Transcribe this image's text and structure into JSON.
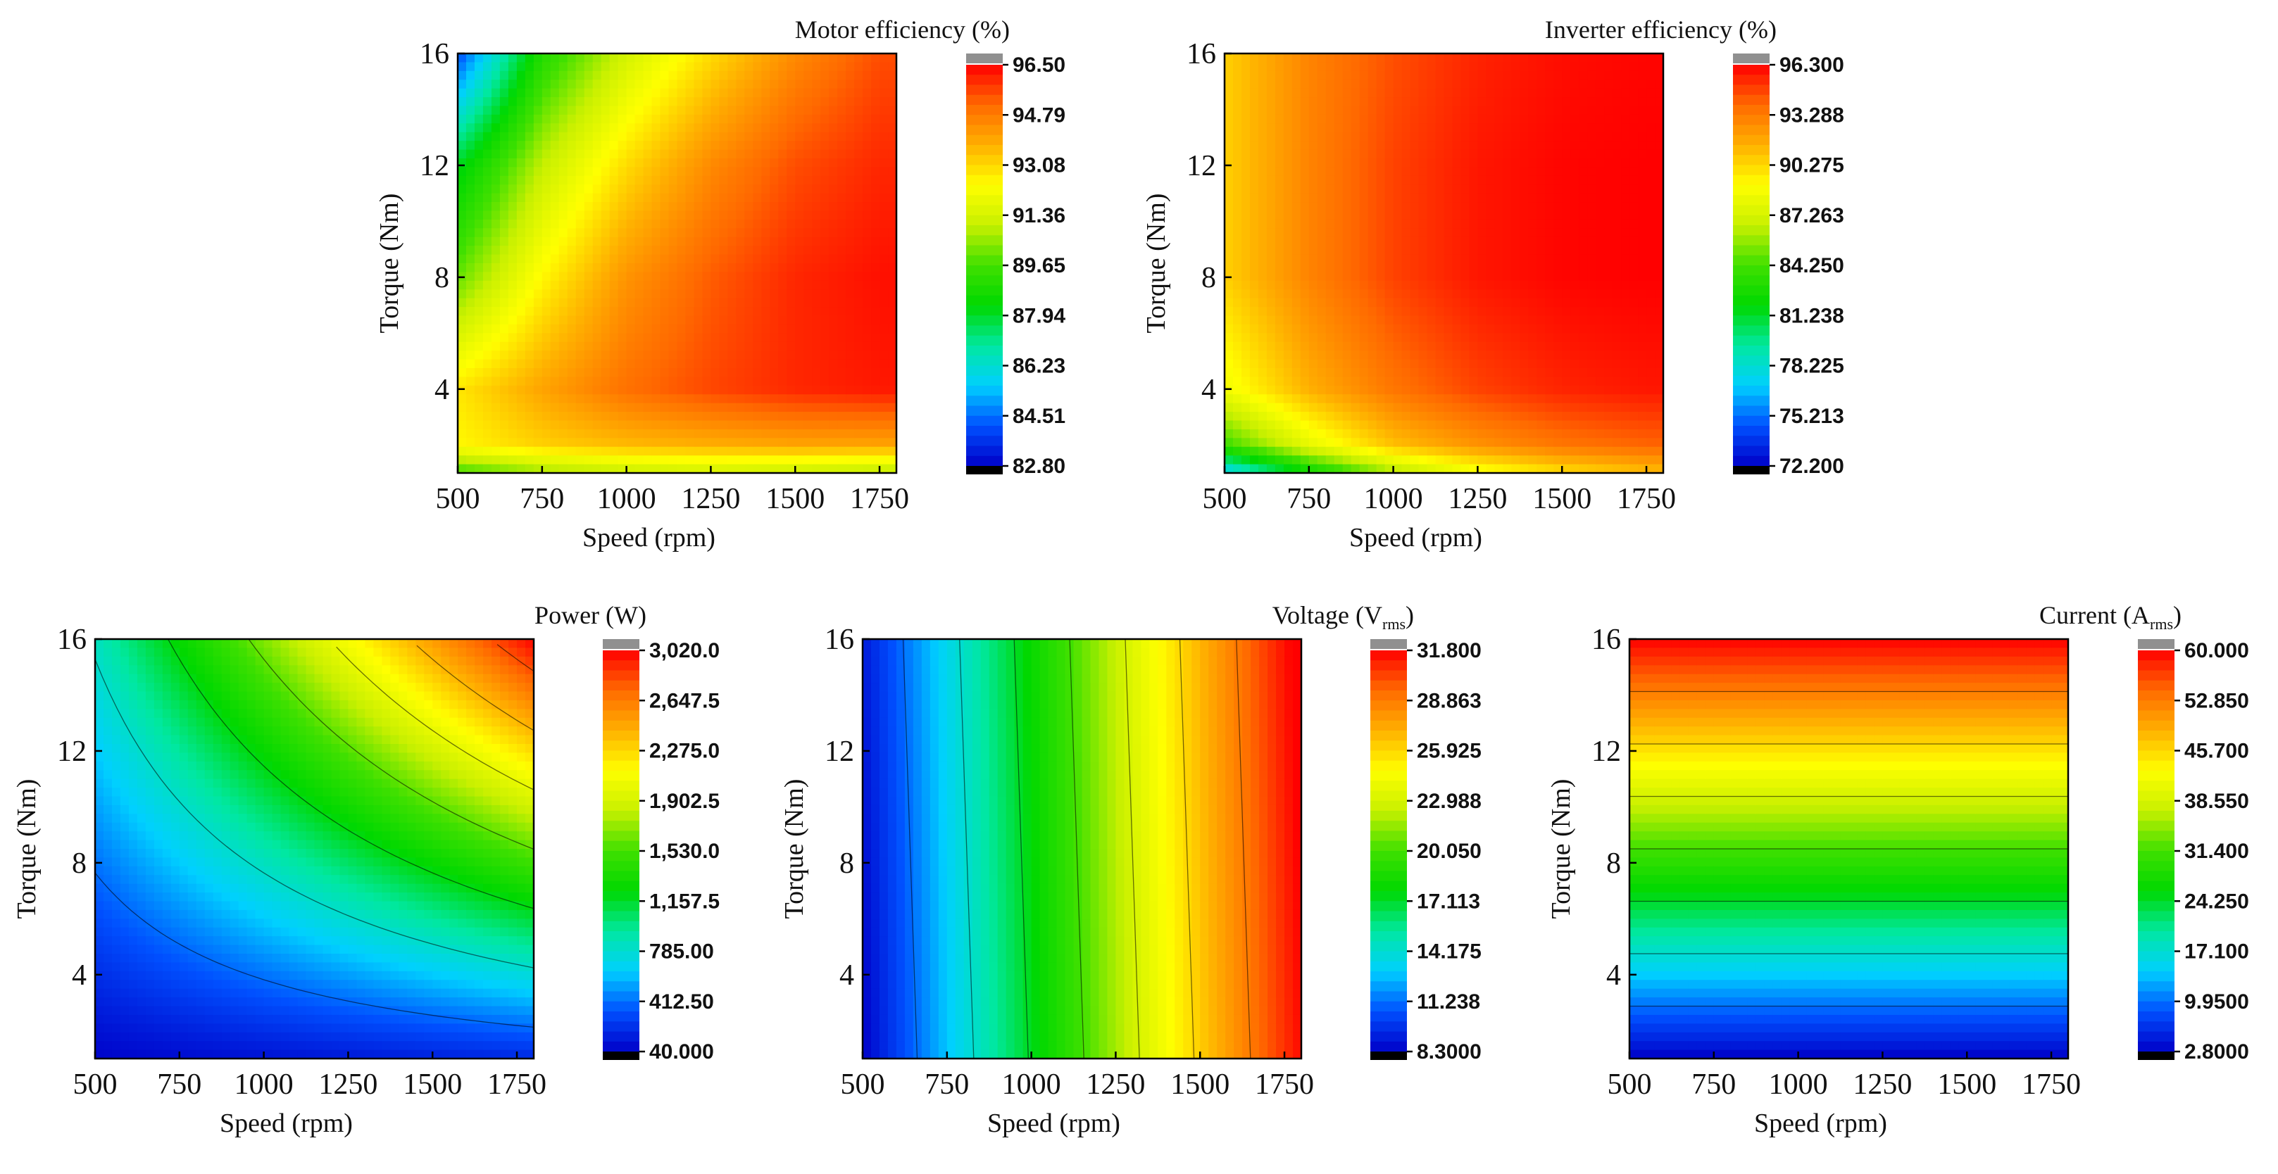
{
  "chart_data": [
    {
      "id": "motor",
      "type": "heatmap",
      "title": "Motor efficiency (%)",
      "xlabel": "Speed (rpm)",
      "ylabel": "Torque (Nm)",
      "xticks": [
        500,
        750,
        1000,
        1250,
        1500,
        1750
      ],
      "yticks": [
        4,
        8,
        12,
        16
      ],
      "xlim": [
        500,
        1800
      ],
      "ylim": [
        1,
        16
      ],
      "colorbar_ticks": [
        "96.50",
        "94.79",
        "93.08",
        "91.36",
        "89.65",
        "87.94",
        "86.23",
        "84.51",
        "82.80"
      ],
      "zlim": [
        82.8,
        96.5
      ],
      "x": [
        500,
        750,
        1000,
        1250,
        1500,
        1750
      ],
      "y": [
        1,
        2,
        4,
        8,
        12,
        16
      ],
      "z": [
        [
          89.5,
          90.5,
          91.0,
          91.2,
          91.0,
          90.8
        ],
        [
          92.5,
          93.2,
          93.6,
          93.8,
          94.0,
          94.0
        ],
        [
          92.8,
          94.0,
          95.0,
          95.6,
          96.0,
          96.2
        ],
        [
          90.0,
          92.5,
          94.3,
          95.3,
          96.0,
          96.3
        ],
        [
          88.0,
          91.0,
          93.0,
          94.5,
          95.5,
          96.0
        ],
        [
          84.0,
          89.0,
          91.3,
          93.0,
          94.5,
          95.5
        ]
      ]
    },
    {
      "id": "inverter",
      "type": "heatmap",
      "title": "Inverter efficiency (%)",
      "xlabel": "Speed (rpm)",
      "ylabel": "Torque (Nm)",
      "xticks": [
        500,
        750,
        1000,
        1250,
        1500,
        1750
      ],
      "yticks": [
        4,
        8,
        12,
        16
      ],
      "xlim": [
        500,
        1800
      ],
      "ylim": [
        1,
        16
      ],
      "colorbar_ticks": [
        "96.300",
        "93.288",
        "90.275",
        "87.263",
        "84.250",
        "81.238",
        "78.225",
        "75.213",
        "72.200"
      ],
      "zlim": [
        72.2,
        96.3
      ],
      "x": [
        500,
        750,
        1000,
        1250,
        1500,
        1750
      ],
      "y": [
        1,
        2,
        4,
        8,
        12,
        16
      ],
      "z": [
        [
          77.0,
          82.0,
          86.0,
          88.5,
          90.0,
          91.0
        ],
        [
          84.0,
          88.0,
          91.0,
          92.5,
          93.5,
          94.0
        ],
        [
          88.5,
          91.5,
          93.5,
          94.8,
          95.5,
          95.8
        ],
        [
          90.5,
          93.0,
          94.8,
          95.8,
          96.2,
          96.3
        ],
        [
          90.5,
          93.0,
          94.8,
          95.8,
          96.2,
          96.3
        ],
        [
          90.5,
          93.0,
          94.5,
          95.5,
          96.0,
          96.2
        ]
      ]
    },
    {
      "id": "power",
      "type": "heatmap",
      "title": "Power (W)",
      "xlabel": "Speed (rpm)",
      "ylabel": "Torque (Nm)",
      "xticks": [
        500,
        750,
        1000,
        1250,
        1500,
        1750
      ],
      "yticks": [
        4,
        8,
        12,
        16
      ],
      "xlim": [
        500,
        1800
      ],
      "ylim": [
        1,
        16
      ],
      "colorbar_ticks": [
        "3,020.0",
        "2,647.5",
        "2,275.0",
        "1,902.5",
        "1,530.0",
        "1,157.5",
        "785.00",
        "412.50",
        "40.000"
      ],
      "zlim": [
        40,
        3020
      ],
      "formula": "power"
    },
    {
      "id": "voltage",
      "type": "heatmap",
      "title": "Voltage (V",
      "title_sub": "rms",
      "title_close": ")",
      "xlabel": "Speed (rpm)",
      "ylabel": "Torque (Nm)",
      "xticks": [
        500,
        750,
        1000,
        1250,
        1500,
        1750
      ],
      "yticks": [
        4,
        8,
        12,
        16
      ],
      "xlim": [
        500,
        1800
      ],
      "ylim": [
        1,
        16
      ],
      "colorbar_ticks": [
        "31.800",
        "28.863",
        "25.925",
        "22.988",
        "20.050",
        "17.113",
        "14.175",
        "11.238",
        "8.3000"
      ],
      "zlim": [
        8.3,
        31.8
      ],
      "formula": "voltage"
    },
    {
      "id": "current",
      "type": "heatmap",
      "title": "Current (A",
      "title_sub": "rms",
      "title_close": ")",
      "xlabel": "Speed (rpm)",
      "ylabel": "Torque (Nm)",
      "xticks": [
        500,
        750,
        1000,
        1250,
        1500,
        1750
      ],
      "yticks": [
        4,
        8,
        12,
        16
      ],
      "xlim": [
        500,
        1800
      ],
      "ylim": [
        1,
        16
      ],
      "colorbar_ticks": [
        "60.000",
        "52.850",
        "45.700",
        "38.550",
        "31.400",
        "24.250",
        "17.100",
        "9.9500",
        "2.8000"
      ],
      "zlim": [
        2.8,
        60.0
      ],
      "formula": "current"
    }
  ],
  "colors": {
    "colormap": [
      "#0000c8",
      "#0050ff",
      "#00d0ff",
      "#00e8a0",
      "#00d800",
      "#40e000",
      "#c8f000",
      "#ffff00",
      "#ffb000",
      "#ff6a00",
      "#ff0000"
    ],
    "over": "#909090",
    "under": "#000000"
  }
}
